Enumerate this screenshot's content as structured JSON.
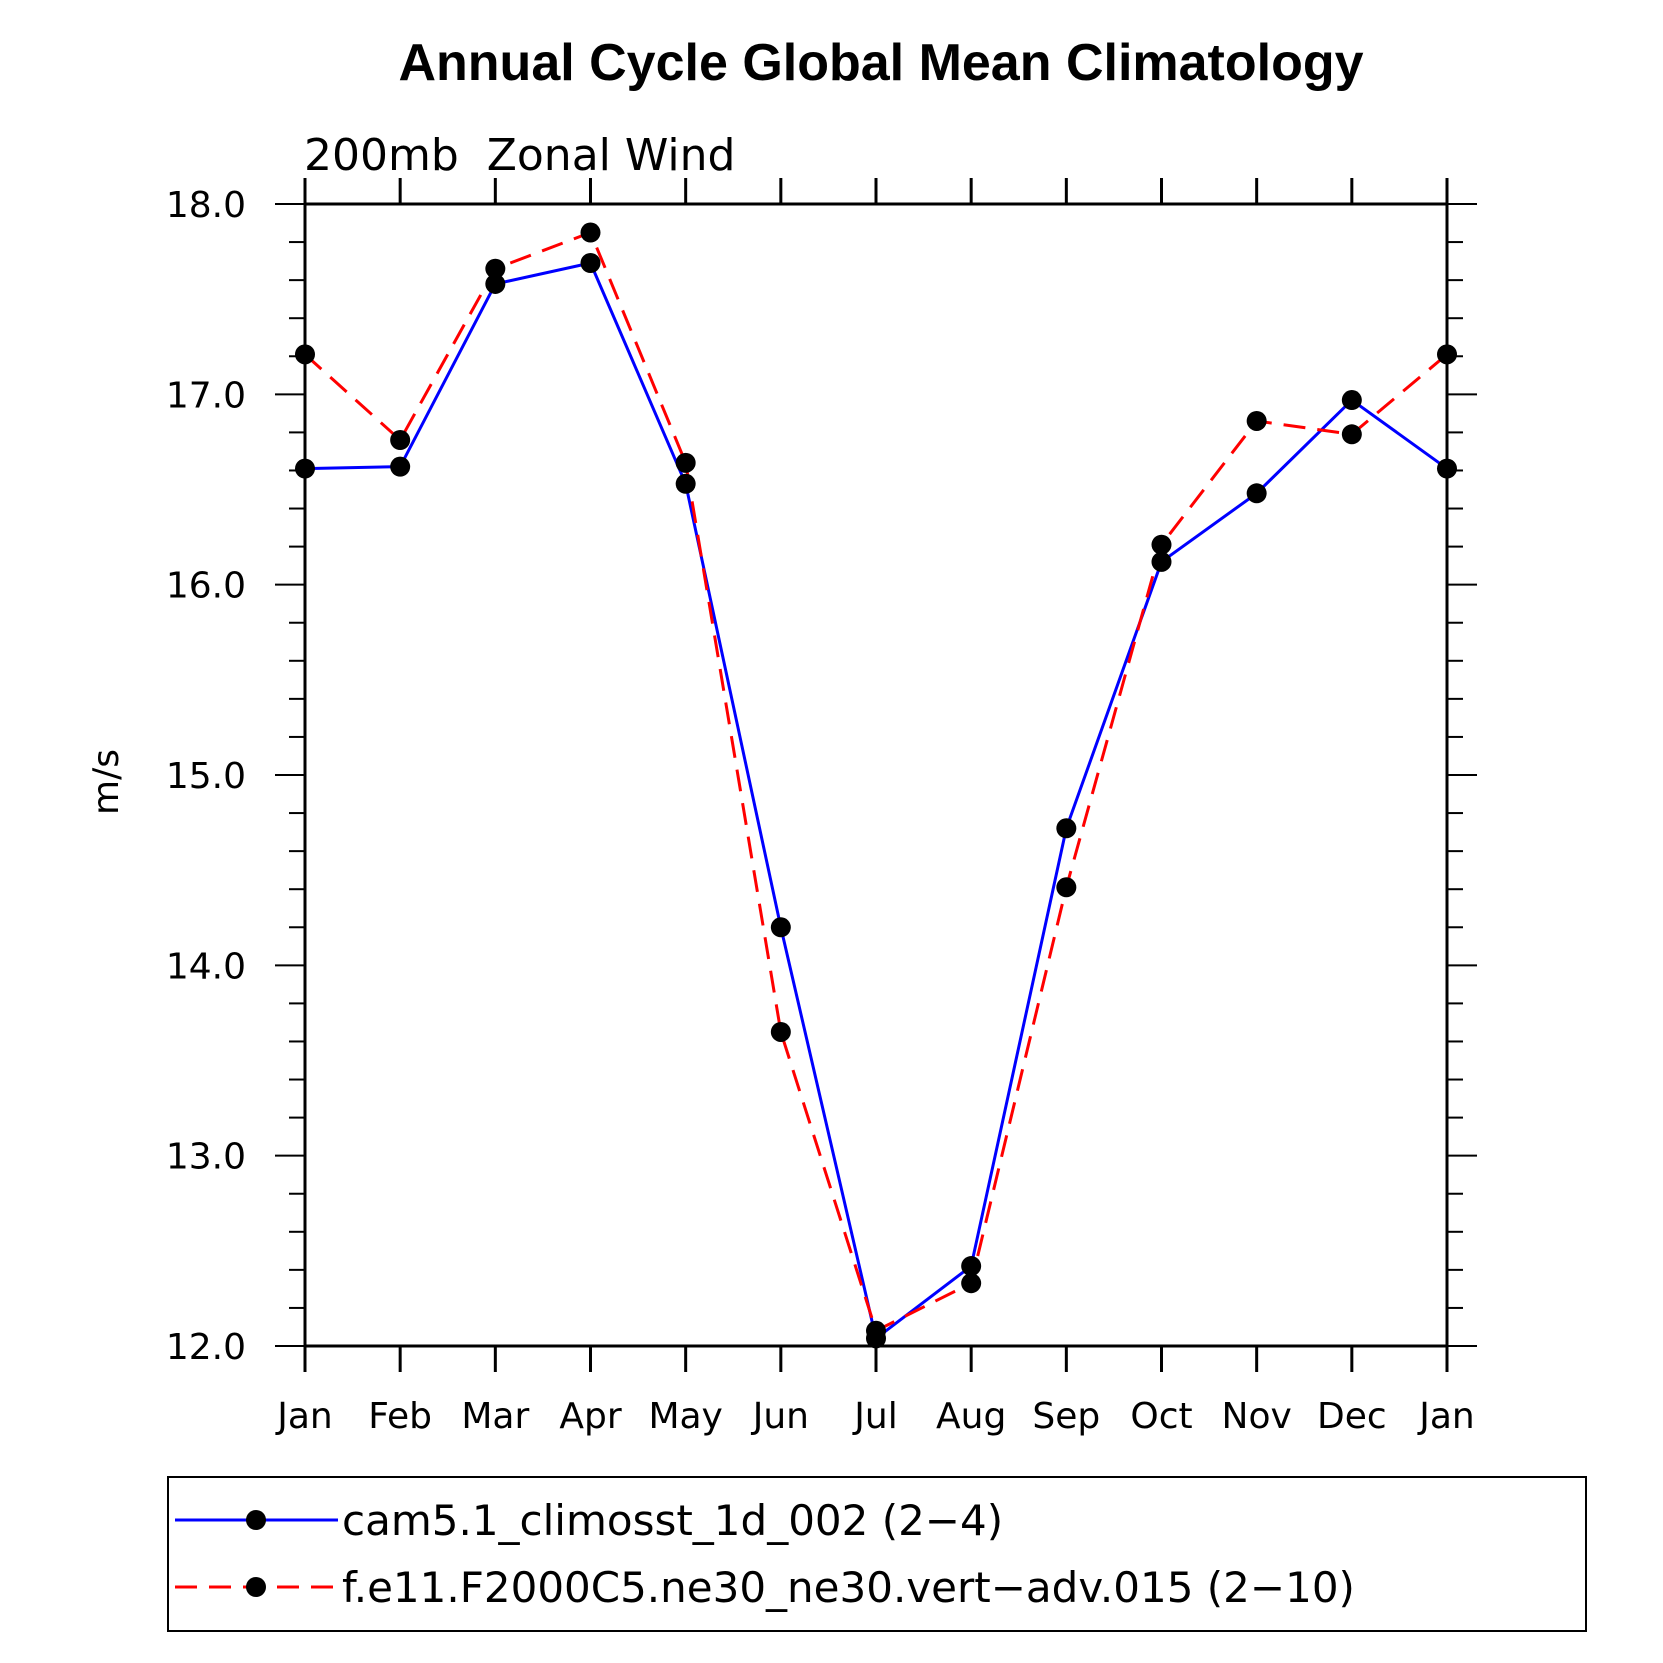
{
  "chart_data": {
    "type": "line",
    "title": "Annual Cycle Global Mean Climatology",
    "subtitle": "200mb  Zonal Wind",
    "xlabel": "",
    "ylabel": "m/s",
    "categories": [
      "Jan",
      "Feb",
      "Mar",
      "Apr",
      "May",
      "Jun",
      "Jul",
      "Aug",
      "Sep",
      "Oct",
      "Nov",
      "Dec",
      "Jan"
    ],
    "ylim": [
      12.0,
      18.0
    ],
    "yticks": [
      "12.0",
      "13.0",
      "14.0",
      "15.0",
      "16.0",
      "17.0",
      "18.0"
    ],
    "grid": false,
    "legend_position": "bottom",
    "series": [
      {
        "name": "cam5.1_climosst_1d_002 (2-4)",
        "legend_label": "cam5.1_climosst_1d_002 (2−4)",
        "color": "#0000ff",
        "dash": "solid",
        "values": [
          16.61,
          16.62,
          17.58,
          17.69,
          16.53,
          14.2,
          12.04,
          12.42,
          14.72,
          16.12,
          16.48,
          16.97,
          16.61
        ]
      },
      {
        "name": "f.e11.F2000C5.ne30_ne30.vert-adv.015 (2-10)",
        "legend_label": "f.e11.F2000C5.ne30_ne30.vert−adv.015 (2−10)",
        "color": "#ff0000",
        "dash": "dashed",
        "values": [
          17.21,
          16.76,
          17.66,
          17.85,
          16.64,
          13.65,
          12.08,
          12.33,
          14.41,
          16.21,
          16.86,
          16.79,
          17.21
        ]
      }
    ]
  }
}
